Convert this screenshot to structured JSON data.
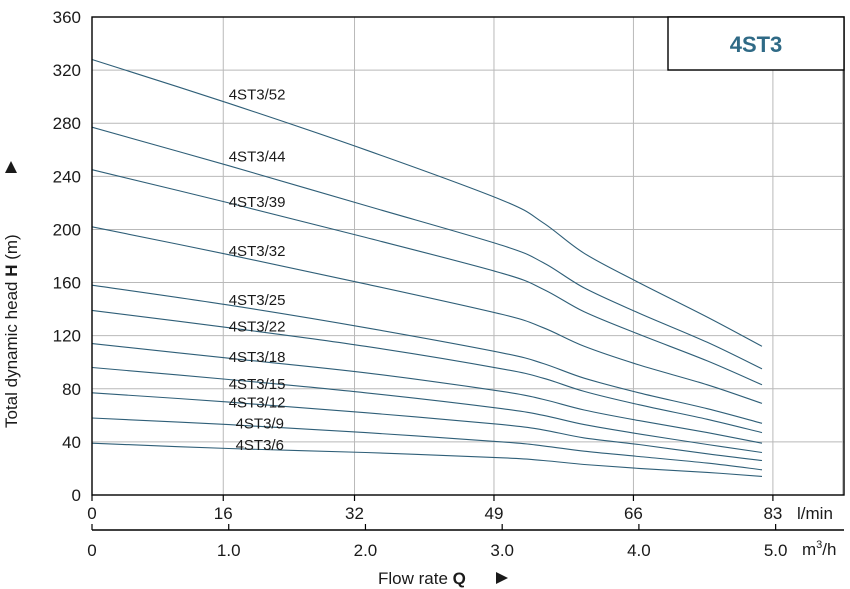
{
  "chart_data": {
    "type": "line",
    "title": "4ST3",
    "xlabel": "Flow rate",
    "xlabel_symbol": "Q",
    "ylabel": "Total dynamic head",
    "ylabel_symbol": "H",
    "ylabel_unit": "(m)",
    "x_unit_primary": "l/min",
    "x_unit_secondary": "m",
    "x_unit_secondary_sup": "3",
    "x_unit_secondary_tail": "/h",
    "xlim_m3h": [
      0,
      5.5
    ],
    "ylim": [
      0,
      360
    ],
    "grid": true,
    "x_ticks_lmin": [
      {
        "value": 0,
        "label": "0"
      },
      {
        "value": 16,
        "label": "16"
      },
      {
        "value": 32,
        "label": "32"
      },
      {
        "value": 49,
        "label": "49"
      },
      {
        "value": 66,
        "label": "66"
      },
      {
        "value": 83,
        "label": "83"
      }
    ],
    "x_ticks_m3h": [
      {
        "value": 0,
        "label": "0"
      },
      {
        "value": 1.0,
        "label": "1.0"
      },
      {
        "value": 2.0,
        "label": "2.0"
      },
      {
        "value": 3.0,
        "label": "3.0"
      },
      {
        "value": 4.0,
        "label": "4.0"
      },
      {
        "value": 5.0,
        "label": "5.0"
      }
    ],
    "y_ticks": [
      {
        "value": 0,
        "label": "0"
      },
      {
        "value": 40,
        "label": "40"
      },
      {
        "value": 80,
        "label": "80"
      },
      {
        "value": 120,
        "label": "120"
      },
      {
        "value": 160,
        "label": "160"
      },
      {
        "value": 200,
        "label": "200"
      },
      {
        "value": 240,
        "label": "240"
      },
      {
        "value": 280,
        "label": "280"
      },
      {
        "value": 320,
        "label": "320"
      },
      {
        "value": 360,
        "label": "360"
      }
    ],
    "series": [
      {
        "name": "4ST3/52",
        "x": [
          0,
          1.0,
          2.0,
          3.0,
          3.3,
          3.6,
          4.0,
          4.5,
          4.9
        ],
        "y": [
          328,
          295,
          260,
          222,
          205,
          182,
          160,
          134,
          112
        ]
      },
      {
        "name": "4ST3/44",
        "x": [
          0,
          1.0,
          2.0,
          3.0,
          3.3,
          3.6,
          4.0,
          4.5,
          4.9
        ],
        "y": [
          277,
          248,
          218,
          188,
          175,
          156,
          137,
          115,
          95
        ]
      },
      {
        "name": "4ST3/39",
        "x": [
          0,
          1.0,
          2.0,
          3.0,
          3.3,
          3.6,
          4.0,
          4.5,
          4.9
        ],
        "y": [
          245,
          220,
          194,
          167,
          155,
          138,
          121,
          101,
          83
        ]
      },
      {
        "name": "4ST3/32",
        "x": [
          0,
          1.0,
          2.0,
          3.0,
          3.3,
          3.6,
          4.0,
          4.5,
          4.9
        ],
        "y": [
          202,
          181,
          159,
          136,
          126,
          112,
          98,
          83,
          69
        ]
      },
      {
        "name": "4ST3/25",
        "x": [
          0,
          1.0,
          2.0,
          3.0,
          3.3,
          3.6,
          4.0,
          4.5,
          4.9
        ],
        "y": [
          158,
          143,
          126,
          107,
          99,
          88,
          77,
          65,
          54
        ]
      },
      {
        "name": "4ST3/22",
        "x": [
          0,
          1.0,
          2.0,
          3.0,
          3.3,
          3.6,
          4.0,
          4.5,
          4.9
        ],
        "y": [
          139,
          126,
          112,
          95,
          88,
          78,
          68,
          57,
          47
        ]
      },
      {
        "name": "4ST3/18",
        "x": [
          0,
          1.0,
          2.0,
          3.0,
          3.3,
          3.6,
          4.0,
          4.5,
          4.9
        ],
        "y": [
          114,
          103,
          92,
          78,
          72,
          64,
          56,
          47,
          39
        ]
      },
      {
        "name": "4ST3/15",
        "x": [
          0,
          1.0,
          2.0,
          3.0,
          3.3,
          3.6,
          4.0,
          4.5,
          4.9
        ],
        "y": [
          96,
          87,
          77,
          65,
          60,
          53,
          46,
          38,
          32
        ]
      },
      {
        "name": "4ST3/12",
        "x": [
          0,
          1.0,
          2.0,
          3.0,
          3.3,
          3.6,
          4.0,
          4.5,
          4.9
        ],
        "y": [
          77,
          70,
          62,
          53,
          49,
          43,
          38,
          31,
          26
        ]
      },
      {
        "name": "4ST3/9",
        "x": [
          0,
          1.0,
          2.0,
          3.0,
          3.3,
          3.6,
          4.0,
          4.5,
          4.9
        ],
        "y": [
          58,
          53,
          47,
          40,
          37,
          33,
          29,
          24,
          19
        ]
      },
      {
        "name": "4ST3/6",
        "x": [
          0,
          1.0,
          2.0,
          3.0,
          3.3,
          3.6,
          4.0,
          4.5,
          4.9
        ],
        "y": [
          39,
          35,
          32,
          28,
          26,
          23,
          20,
          17,
          14
        ]
      }
    ],
    "curve_labels": [
      {
        "text": "4ST3/52",
        "x": 1.0,
        "y": 298
      },
      {
        "text": "4ST3/44",
        "x": 1.0,
        "y": 251
      },
      {
        "text": "4ST3/39",
        "x": 1.0,
        "y": 217
      },
      {
        "text": "4ST3/32",
        "x": 1.0,
        "y": 180
      },
      {
        "text": "4ST3/25",
        "x": 1.0,
        "y": 143
      },
      {
        "text": "4ST3/22",
        "x": 1.0,
        "y": 123
      },
      {
        "text": "4ST3/18",
        "x": 1.0,
        "y": 100
      },
      {
        "text": "4ST3/15",
        "x": 1.0,
        "y": 80
      },
      {
        "text": "4ST3/12",
        "x": 1.0,
        "y": 66
      },
      {
        "text": "4ST3/9",
        "x": 1.05,
        "y": 50
      },
      {
        "text": "4ST3/6",
        "x": 1.05,
        "y": 34
      }
    ]
  }
}
